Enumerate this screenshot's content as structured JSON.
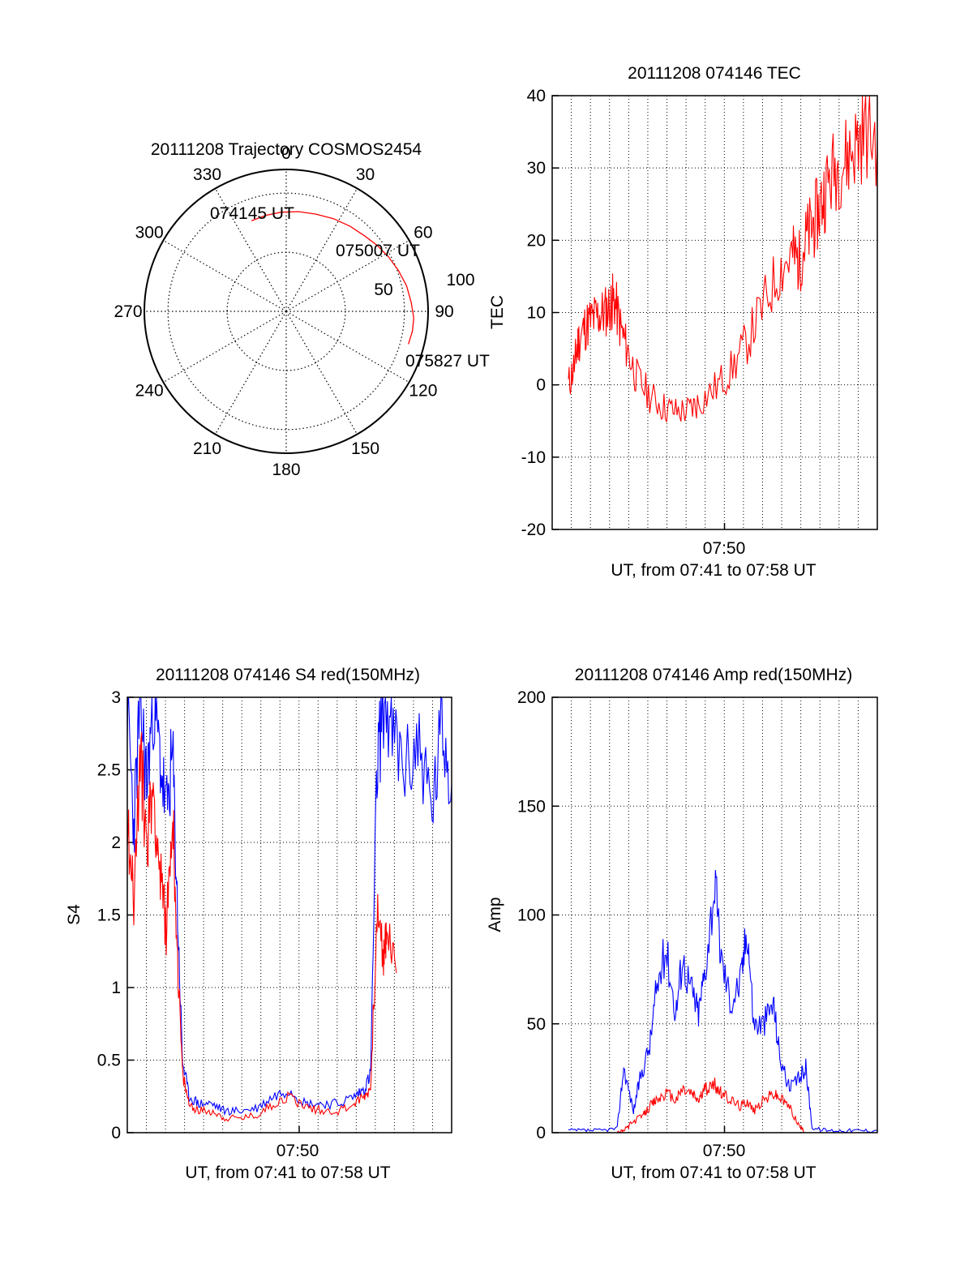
{
  "colors": {
    "red": "#ff0000",
    "blue": "#0000ff",
    "axis": "#000000",
    "grid": "#000000"
  },
  "chart_data": [
    {
      "type": "polar",
      "title": "20111208 Trajectory COSMOS2454",
      "angle_labels": [
        "0",
        "30",
        "60",
        "90",
        "120",
        "150",
        "180",
        "210",
        "240",
        "270",
        "300",
        "330"
      ],
      "radial_labels": [
        "50",
        "100"
      ],
      "start_label": "074145 UT",
      "mid_label": "075007 UT",
      "end_label": "075827 UT",
      "series": [
        {
          "color": "red",
          "points": [
            [
              -21,
              82
            ],
            [
              -12,
              83
            ],
            [
              -3,
              84
            ],
            [
              7,
              85
            ],
            [
              17,
              86
            ],
            [
              27,
              88
            ],
            [
              37,
              90
            ],
            [
              46,
              92
            ],
            [
              54,
              95
            ],
            [
              62,
              98
            ],
            [
              70,
              101
            ],
            [
              78,
              104
            ],
            [
              86,
              106
            ],
            [
              93,
              108
            ],
            [
              99,
              108
            ],
            [
              105,
              107
            ]
          ]
        }
      ]
    },
    {
      "type": "line",
      "title": "20111208 074146 TEC",
      "ylabel": "TEC",
      "xlabel": "UT, from 07:41 to 07:58 UT",
      "xtick_label": "07:50",
      "ylim": [
        -20,
        40
      ],
      "yticks": [
        "-20",
        "-10",
        "0",
        "10",
        "20",
        "30",
        "40"
      ],
      "series": [
        {
          "color": "red",
          "x": [
            0.05,
            0.07,
            0.08,
            0.1,
            0.12,
            0.14,
            0.16,
            0.18,
            0.19,
            0.21,
            0.23,
            0.26,
            0.3,
            0.34,
            0.38,
            0.42,
            0.45,
            0.5,
            0.55,
            0.6,
            0.65,
            0.7,
            0.74,
            0.76,
            0.78,
            0.8,
            0.82,
            0.84,
            0.87,
            0.9,
            0.93,
            0.96,
            1.0
          ],
          "y": [
            0,
            3,
            6,
            8,
            9,
            9.5,
            10,
            11,
            12,
            8,
            5,
            1,
            -1.5,
            -3,
            -3.7,
            -3.5,
            -2.5,
            -0.5,
            2,
            6,
            11,
            16,
            18,
            17,
            20,
            22,
            24,
            27,
            30,
            31,
            33,
            35,
            34
          ]
        }
      ]
    },
    {
      "type": "line",
      "title": "20111208 074146 S4 red(150MHz)",
      "ylabel": "S4",
      "xlabel": "UT, from 07:41 to 07:58 UT",
      "xtick_label": "07:50",
      "ylim": [
        0,
        3
      ],
      "yticks": [
        "0",
        "0.5",
        "1",
        "1.5",
        "2",
        "2.5",
        "3"
      ],
      "series": [
        {
          "color": "blue",
          "x": [
            0.0,
            0.02,
            0.04,
            0.06,
            0.08,
            0.1,
            0.12,
            0.14,
            0.155,
            0.17,
            0.19,
            0.22,
            0.26,
            0.3,
            0.35,
            0.4,
            0.45,
            0.5,
            0.55,
            0.6,
            0.65,
            0.7,
            0.73,
            0.75,
            0.77,
            0.79,
            0.82,
            0.86,
            0.9,
            0.94,
            0.97,
            1.0
          ],
          "y": [
            3,
            2.1,
            3,
            2.4,
            3,
            2.6,
            2.2,
            2.6,
            1.5,
            0.5,
            0.25,
            0.2,
            0.2,
            0.15,
            0.15,
            0.17,
            0.25,
            0.3,
            0.2,
            0.2,
            0.2,
            0.25,
            0.3,
            0.4,
            2.5,
            3,
            2.7,
            2.5,
            2.7,
            2.2,
            2.8,
            2.4
          ]
        },
        {
          "color": "red",
          "x": [
            0.0,
            0.02,
            0.04,
            0.06,
            0.08,
            0.1,
            0.12,
            0.14,
            0.155,
            0.17,
            0.19,
            0.22,
            0.26,
            0.3,
            0.35,
            0.4,
            0.45,
            0.5,
            0.55,
            0.6,
            0.65,
            0.7,
            0.73,
            0.75,
            0.77,
            0.79,
            0.8,
            0.83
          ],
          "y": [
            2.2,
            1.6,
            2.6,
            2.0,
            2.4,
            1.8,
            1.4,
            2.2,
            1.2,
            0.4,
            0.2,
            0.15,
            0.15,
            0.1,
            0.1,
            0.12,
            0.2,
            0.25,
            0.18,
            0.15,
            0.15,
            0.2,
            0.25,
            0.3,
            1.5,
            1.2,
            1.4,
            1.1
          ]
        }
      ]
    },
    {
      "type": "line",
      "title": "20111208 074146 Amp red(150MHz)",
      "ylabel": "Amp",
      "xlabel": "UT, from 07:41 to 07:58 UT",
      "xtick_label": "07:50",
      "ylim": [
        0,
        200
      ],
      "yticks": [
        "0",
        "50",
        "100",
        "150",
        "200"
      ],
      "series": [
        {
          "color": "blue",
          "x": [
            0.05,
            0.1,
            0.15,
            0.2,
            0.22,
            0.25,
            0.27,
            0.3,
            0.32,
            0.35,
            0.38,
            0.4,
            0.43,
            0.45,
            0.47,
            0.5,
            0.52,
            0.55,
            0.58,
            0.6,
            0.62,
            0.65,
            0.68,
            0.7,
            0.73,
            0.76,
            0.78,
            0.8,
            0.85,
            0.9,
            0.95,
            1.0
          ],
          "y": [
            1,
            1,
            1,
            2,
            30,
            10,
            25,
            40,
            65,
            85,
            55,
            80,
            65,
            55,
            75,
            115,
            80,
            60,
            70,
            95,
            50,
            50,
            60,
            35,
            20,
            25,
            30,
            2,
            1,
            1,
            1,
            1
          ]
        },
        {
          "color": "red",
          "x": [
            0.2,
            0.22,
            0.25,
            0.28,
            0.3,
            0.32,
            0.35,
            0.38,
            0.4,
            0.43,
            0.45,
            0.47,
            0.5,
            0.52,
            0.55,
            0.58,
            0.6,
            0.62,
            0.65,
            0.68,
            0.7,
            0.73,
            0.76,
            0.78
          ],
          "y": [
            0,
            1,
            5,
            8,
            12,
            15,
            18,
            15,
            20,
            18,
            15,
            20,
            22,
            18,
            15,
            12,
            15,
            10,
            15,
            18,
            16,
            12,
            3,
            0
          ]
        }
      ]
    }
  ]
}
